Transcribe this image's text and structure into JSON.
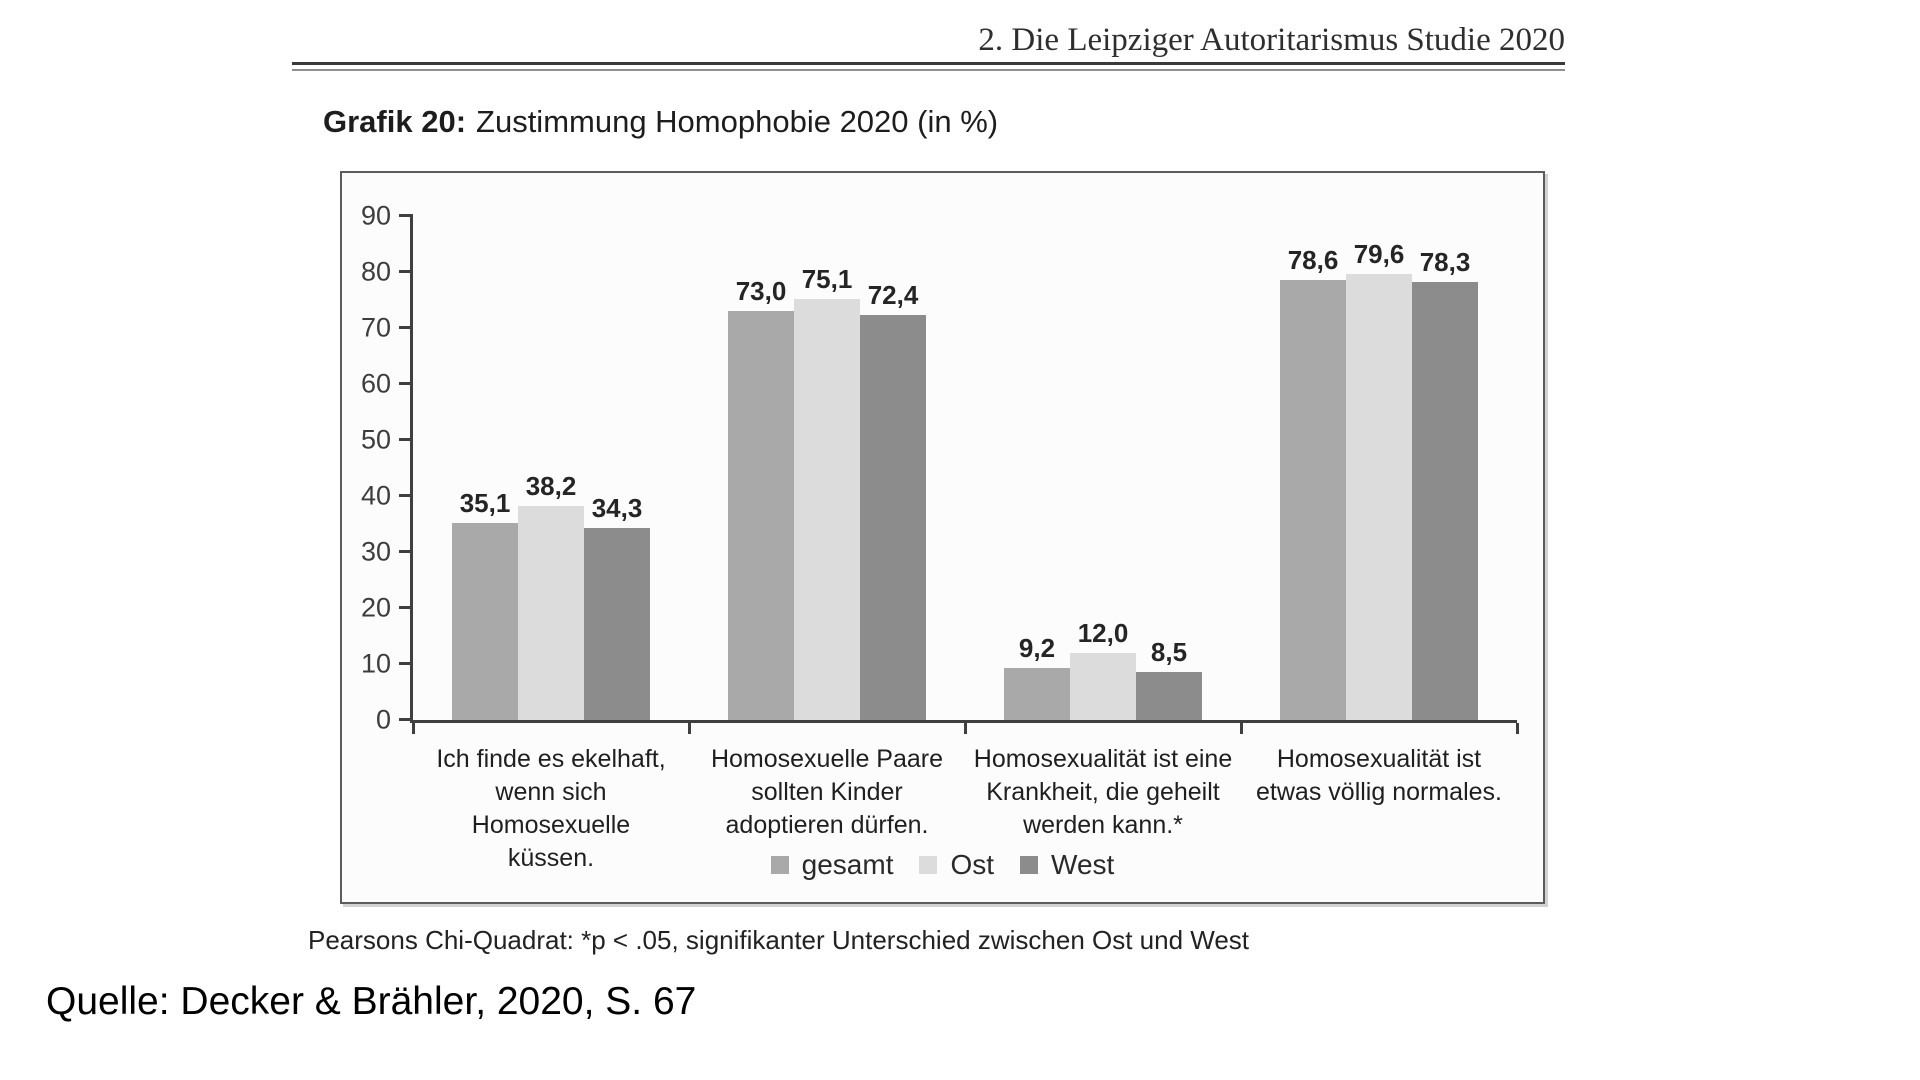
{
  "page": {
    "chapter_header": "2. Die Leipziger Autoritarismus Studie 2020",
    "figure_label": "Grafik 20:",
    "figure_title": "Zustimmung Homophobie 2020 (in %)",
    "footnote": "Pearsons Chi-Quadrat: *p < .05, signifikanter Unterschied zwischen Ost und West",
    "source": "Quelle: Decker & Brähler, 2020, S. 67"
  },
  "chart_data": {
    "type": "bar",
    "title": "Grafik 20: Zustimmung Homophobie 2020 (in %)",
    "xlabel": "",
    "ylabel": "",
    "ylim": [
      0,
      90
    ],
    "yticks": [
      0,
      10,
      20,
      30,
      40,
      50,
      60,
      70,
      80,
      90
    ],
    "grid": false,
    "legend_position": "bottom-center",
    "decimal_separator": ",",
    "value_labels_shown": true,
    "categories": [
      "Ich finde es ekelhaft,\nwenn sich Homosexuelle\nküssen.",
      "Homosexuelle Paare\nsollten Kinder\nadoptieren dürfen.",
      "Homosexualität ist eine\nKrankheit, die geheilt\nwerden kann.*",
      "Homosexualität ist\netwas völlig normales."
    ],
    "series": [
      {
        "name": "gesamt",
        "color": "#a9a9a9",
        "values": [
          35.1,
          73.0,
          9.2,
          78.6
        ]
      },
      {
        "name": "Ost",
        "color": "#dcdcdc",
        "values": [
          38.2,
          75.1,
          12.0,
          79.6
        ]
      },
      {
        "name": "West",
        "color": "#8c8c8c",
        "values": [
          34.3,
          72.4,
          8.5,
          78.3
        ]
      }
    ]
  },
  "colors": {
    "axis": "#3f3f3f",
    "box_border": "#5c5c5c",
    "header_rule": "#3a3a3a",
    "bar_gesamt": "#a9a9a9",
    "bar_ost": "#dcdcdc",
    "bar_west": "#8c8c8c"
  }
}
